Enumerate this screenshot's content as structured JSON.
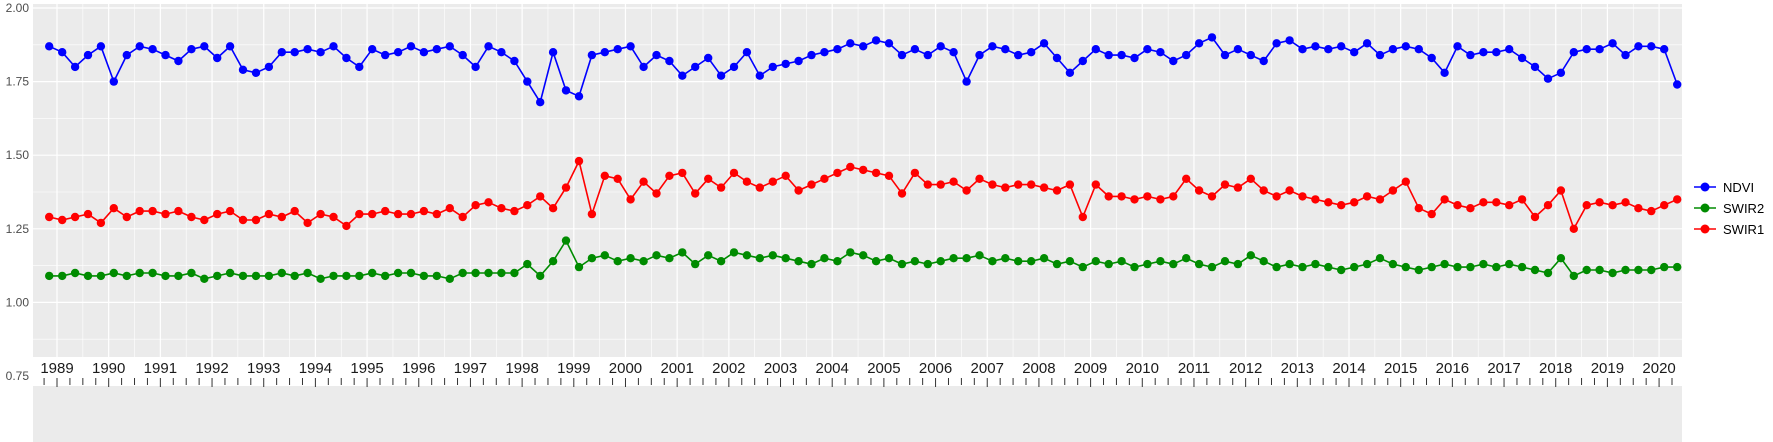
{
  "figure": {
    "background": "#FFFFFF",
    "panel_background": "#EBEBEB",
    "grid_color": "#FFFFFF",
    "axis_text_color": "#4D4D4D",
    "x_label_color": "#1A1A1A",
    "tick_color": "#333333"
  },
  "legend": {
    "position": "right",
    "items": [
      {
        "label": "NDVI",
        "color": "#0000FF"
      },
      {
        "label": "SWIR2",
        "color": "#008B00"
      },
      {
        "label": "SWIR1",
        "color": "#FF0000"
      }
    ]
  },
  "chart_data": {
    "type": "line",
    "title": "",
    "xlabel": "",
    "ylabel": "",
    "grid": true,
    "legend_position": "right",
    "marker": "point+line",
    "x_start": 1988.85,
    "x_step": 0.25,
    "n_points": 127,
    "xlim": [
      1988.54,
      2020.44
    ],
    "ylim": [
      0.75,
      2.0
    ],
    "ytick_values": [
      2.0,
      1.75,
      1.5,
      1.25,
      1.0,
      0.75
    ],
    "ytick_labels": [
      "2.00",
      "1.75",
      "1.50",
      "1.25",
      "1.00",
      "0.75"
    ],
    "xtick_years": [
      1989,
      1990,
      1991,
      1992,
      1993,
      1994,
      1995,
      1996,
      1997,
      1998,
      1999,
      2000,
      2001,
      2002,
      2003,
      2004,
      2005,
      2006,
      2007,
      2008,
      2009,
      2010,
      2011,
      2012,
      2013,
      2014,
      2015,
      2016,
      2017,
      2018,
      2019,
      2020
    ],
    "series": [
      {
        "name": "NDVI",
        "color": "#0000FF",
        "values": [
          1.87,
          1.85,
          1.8,
          1.84,
          1.87,
          1.75,
          1.84,
          1.87,
          1.86,
          1.84,
          1.82,
          1.86,
          1.87,
          1.83,
          1.87,
          1.79,
          1.78,
          1.8,
          1.85,
          1.85,
          1.86,
          1.85,
          1.87,
          1.83,
          1.8,
          1.86,
          1.84,
          1.85,
          1.87,
          1.85,
          1.86,
          1.87,
          1.84,
          1.8,
          1.87,
          1.85,
          1.82,
          1.75,
          1.68,
          1.85,
          1.72,
          1.7,
          1.84,
          1.85,
          1.86,
          1.87,
          1.8,
          1.84,
          1.82,
          1.77,
          1.8,
          1.83,
          1.77,
          1.8,
          1.85,
          1.77,
          1.8,
          1.81,
          1.82,
          1.84,
          1.85,
          1.86,
          1.88,
          1.87,
          1.89,
          1.88,
          1.84,
          1.86,
          1.84,
          1.87,
          1.85,
          1.75,
          1.84,
          1.87,
          1.86,
          1.84,
          1.85,
          1.88,
          1.83,
          1.78,
          1.82,
          1.86,
          1.84,
          1.84,
          1.83,
          1.86,
          1.85,
          1.82,
          1.84,
          1.88,
          1.9,
          1.84,
          1.86,
          1.84,
          1.82,
          1.88,
          1.89,
          1.86,
          1.87,
          1.86,
          1.87,
          1.85,
          1.88,
          1.84,
          1.86,
          1.87,
          1.86,
          1.83,
          1.78,
          1.87,
          1.84,
          1.85,
          1.85,
          1.86,
          1.83,
          1.8,
          1.76,
          1.78,
          1.85,
          1.86,
          1.86,
          1.88,
          1.84,
          1.87,
          1.87,
          1.86,
          1.74
        ]
      },
      {
        "name": "SWIR2",
        "color": "#008B00",
        "values": [
          1.09,
          1.09,
          1.1,
          1.09,
          1.09,
          1.1,
          1.09,
          1.1,
          1.1,
          1.09,
          1.09,
          1.1,
          1.08,
          1.09,
          1.1,
          1.09,
          1.09,
          1.09,
          1.1,
          1.09,
          1.1,
          1.08,
          1.09,
          1.09,
          1.09,
          1.1,
          1.09,
          1.1,
          1.1,
          1.09,
          1.09,
          1.08,
          1.1,
          1.1,
          1.1,
          1.1,
          1.1,
          1.13,
          1.09,
          1.14,
          1.21,
          1.12,
          1.15,
          1.16,
          1.14,
          1.15,
          1.14,
          1.16,
          1.15,
          1.17,
          1.13,
          1.16,
          1.14,
          1.17,
          1.16,
          1.15,
          1.16,
          1.15,
          1.14,
          1.13,
          1.15,
          1.14,
          1.17,
          1.16,
          1.14,
          1.15,
          1.13,
          1.14,
          1.13,
          1.14,
          1.15,
          1.15,
          1.16,
          1.14,
          1.15,
          1.14,
          1.14,
          1.15,
          1.13,
          1.14,
          1.12,
          1.14,
          1.13,
          1.14,
          1.12,
          1.13,
          1.14,
          1.13,
          1.15,
          1.13,
          1.12,
          1.14,
          1.13,
          1.16,
          1.14,
          1.12,
          1.13,
          1.12,
          1.13,
          1.12,
          1.11,
          1.12,
          1.13,
          1.15,
          1.13,
          1.12,
          1.11,
          1.12,
          1.13,
          1.12,
          1.12,
          1.13,
          1.12,
          1.13,
          1.12,
          1.11,
          1.1,
          1.15,
          1.09,
          1.11,
          1.11,
          1.1,
          1.11,
          1.11,
          1.11,
          1.12,
          1.12
        ]
      },
      {
        "name": "SWIR1",
        "color": "#FF0000",
        "values": [
          1.29,
          1.28,
          1.29,
          1.3,
          1.27,
          1.32,
          1.29,
          1.31,
          1.31,
          1.3,
          1.31,
          1.29,
          1.28,
          1.3,
          1.31,
          1.28,
          1.28,
          1.3,
          1.29,
          1.31,
          1.27,
          1.3,
          1.29,
          1.26,
          1.3,
          1.3,
          1.31,
          1.3,
          1.3,
          1.31,
          1.3,
          1.32,
          1.29,
          1.33,
          1.34,
          1.32,
          1.31,
          1.33,
          1.36,
          1.32,
          1.39,
          1.48,
          1.3,
          1.43,
          1.42,
          1.35,
          1.41,
          1.37,
          1.43,
          1.44,
          1.37,
          1.42,
          1.39,
          1.44,
          1.41,
          1.39,
          1.41,
          1.43,
          1.38,
          1.4,
          1.42,
          1.44,
          1.46,
          1.45,
          1.44,
          1.43,
          1.37,
          1.44,
          1.4,
          1.4,
          1.41,
          1.38,
          1.42,
          1.4,
          1.39,
          1.4,
          1.4,
          1.39,
          1.38,
          1.4,
          1.29,
          1.4,
          1.36,
          1.36,
          1.35,
          1.36,
          1.35,
          1.36,
          1.42,
          1.38,
          1.36,
          1.4,
          1.39,
          1.42,
          1.38,
          1.36,
          1.38,
          1.36,
          1.35,
          1.34,
          1.33,
          1.34,
          1.36,
          1.35,
          1.38,
          1.41,
          1.32,
          1.3,
          1.35,
          1.33,
          1.32,
          1.34,
          1.34,
          1.33,
          1.35,
          1.29,
          1.33,
          1.38,
          1.25,
          1.33,
          1.34,
          1.33,
          1.34,
          1.32,
          1.31,
          1.33,
          1.35
        ]
      }
    ]
  }
}
